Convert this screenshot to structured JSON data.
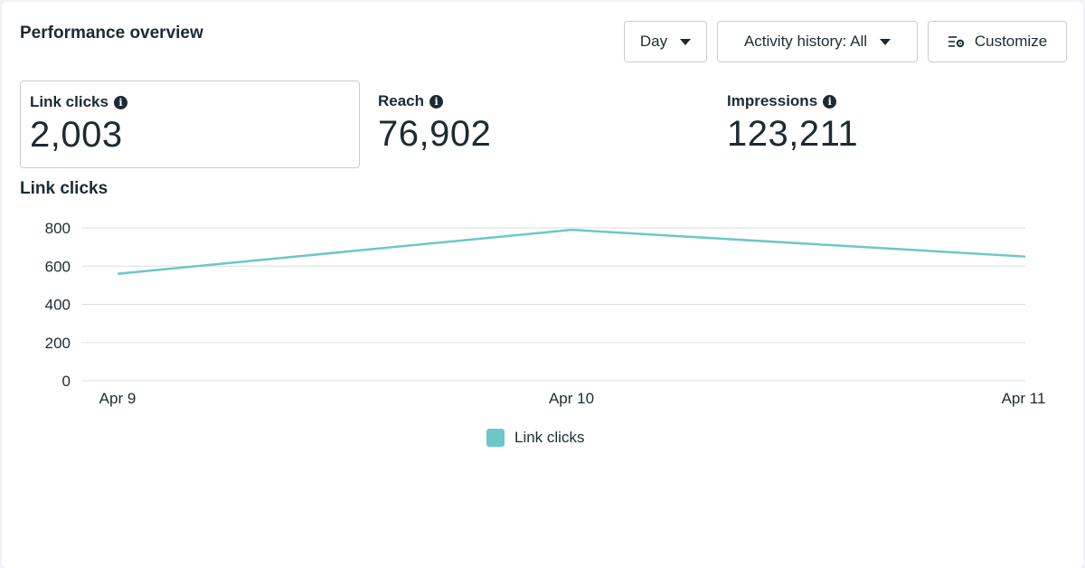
{
  "header": {
    "title": "Performance overview"
  },
  "controls": {
    "day": "Day",
    "activity": "Activity history: All",
    "customize": "Customize"
  },
  "metrics": [
    {
      "label": "Link clicks",
      "value": "2,003",
      "selected": true
    },
    {
      "label": "Reach",
      "value": "76,902",
      "selected": false
    },
    {
      "label": "Impressions",
      "value": "123,211",
      "selected": false
    }
  ],
  "chart_section_title": "Link clicks",
  "colors": {
    "line": "#6cc7c9",
    "grid": "#dadde1"
  },
  "chart_data": {
    "type": "line",
    "categories": [
      "Apr 9",
      "Apr 10",
      "Apr 11"
    ],
    "series": [
      {
        "name": "Link clicks",
        "values": [
          560,
          790,
          650
        ]
      }
    ],
    "yticks": [
      0,
      200,
      400,
      600,
      800
    ],
    "ylim": [
      0,
      800
    ],
    "grid": true,
    "legend": "bottom-center"
  }
}
